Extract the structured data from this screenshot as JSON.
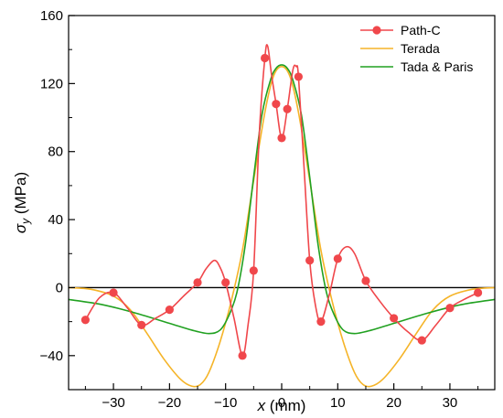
{
  "chart_data": {
    "type": "line",
    "xlabel_var": "x",
    "xlabel_unit": " (mm)",
    "ylabel_var": "σ",
    "ylabel_sub": "y",
    "ylabel_unit": " (MPa)",
    "xlim": [
      -38,
      38
    ],
    "ylim": [
      -60,
      160
    ],
    "xticks": [
      -30,
      -20,
      -10,
      0,
      10,
      20,
      30
    ],
    "yticks": [
      -40,
      0,
      40,
      80,
      120,
      160
    ],
    "grid": false,
    "legend_position": "top-right",
    "zero_line": true,
    "colors": {
      "Path-C": "#f0474b",
      "Terada": "#f5b428",
      "Tada & Paris": "#21a121"
    },
    "series": [
      {
        "name": "Path-C",
        "kind": "line+markers",
        "points": [
          [
            -35,
            -19
          ],
          [
            -30,
            -3
          ],
          [
            -25,
            -22
          ],
          [
            -20,
            -13
          ],
          [
            -15,
            3
          ],
          [
            -10,
            3
          ],
          [
            -7,
            -40
          ],
          [
            -5,
            10
          ],
          [
            -3,
            135
          ],
          [
            -1,
            108
          ],
          [
            0,
            88
          ],
          [
            1,
            105
          ],
          [
            3,
            124
          ],
          [
            5,
            16
          ],
          [
            7,
            -20
          ],
          [
            10,
            17
          ],
          [
            15,
            4
          ],
          [
            20,
            -18
          ],
          [
            25,
            -31
          ],
          [
            30,
            -12
          ],
          [
            35,
            -3
          ]
        ],
        "curve": [
          [
            -35,
            -19
          ],
          [
            -32.5,
            -6
          ],
          [
            -30,
            -3
          ],
          [
            -27.5,
            -12
          ],
          [
            -25,
            -22
          ],
          [
            -22.5,
            -18
          ],
          [
            -20,
            -13
          ],
          [
            -17.5,
            -5
          ],
          [
            -15,
            3
          ],
          [
            -13.5,
            11
          ],
          [
            -12,
            16
          ],
          [
            -11,
            12
          ],
          [
            -10,
            3
          ],
          [
            -8.5,
            -18
          ],
          [
            -7,
            -40
          ],
          [
            -6,
            -22
          ],
          [
            -5,
            10
          ],
          [
            -4,
            90
          ],
          [
            -3,
            135
          ],
          [
            -2.5,
            142
          ],
          [
            -1.8,
            125
          ],
          [
            -1,
            108
          ],
          [
            0,
            88
          ],
          [
            1,
            105
          ],
          [
            2,
            128
          ],
          [
            2.6,
            130
          ],
          [
            3,
            124
          ],
          [
            4,
            70
          ],
          [
            5,
            16
          ],
          [
            6,
            -10
          ],
          [
            7,
            -20
          ],
          [
            8.5,
            -4
          ],
          [
            10,
            17
          ],
          [
            11.5,
            24
          ],
          [
            13,
            20
          ],
          [
            15,
            4
          ],
          [
            17.5,
            -8
          ],
          [
            20,
            -18
          ],
          [
            22.5,
            -26
          ],
          [
            25,
            -31
          ],
          [
            27.5,
            -22
          ],
          [
            30,
            -12
          ],
          [
            32.5,
            -7
          ],
          [
            35,
            -3
          ]
        ]
      },
      {
        "name": "Terada",
        "kind": "line",
        "curve": [
          [
            -38,
            0
          ],
          [
            -34,
            -1
          ],
          [
            -30,
            -5
          ],
          [
            -27,
            -13
          ],
          [
            -24,
            -27
          ],
          [
            -21,
            -42
          ],
          [
            -18,
            -54
          ],
          [
            -16,
            -58
          ],
          [
            -14.5,
            -57
          ],
          [
            -13,
            -50
          ],
          [
            -11,
            -32
          ],
          [
            -9,
            -8
          ],
          [
            -7,
            22
          ],
          [
            -5,
            63
          ],
          [
            -3,
            103
          ],
          [
            -1.5,
            124
          ],
          [
            0,
            130
          ],
          [
            1.5,
            124
          ],
          [
            3,
            103
          ],
          [
            5,
            63
          ],
          [
            7,
            22
          ],
          [
            9,
            -8
          ],
          [
            11,
            -32
          ],
          [
            13,
            -50
          ],
          [
            14.5,
            -57
          ],
          [
            16,
            -58
          ],
          [
            18,
            -54
          ],
          [
            21,
            -42
          ],
          [
            24,
            -27
          ],
          [
            27,
            -13
          ],
          [
            30,
            -5
          ],
          [
            34,
            -1
          ],
          [
            38,
            0
          ]
        ]
      },
      {
        "name": "Tada & Paris",
        "kind": "line",
        "curve": [
          [
            -38,
            -7
          ],
          [
            -32,
            -10
          ],
          [
            -26,
            -15
          ],
          [
            -20,
            -21
          ],
          [
            -16,
            -25
          ],
          [
            -13,
            -27
          ],
          [
            -11,
            -25
          ],
          [
            -9.5,
            -17
          ],
          [
            -8,
            -3
          ],
          [
            -6.5,
            25
          ],
          [
            -5,
            65
          ],
          [
            -3.5,
            102
          ],
          [
            -2,
            122
          ],
          [
            -1,
            129
          ],
          [
            0,
            131
          ],
          [
            1,
            129
          ],
          [
            2,
            122
          ],
          [
            3.5,
            102
          ],
          [
            5,
            65
          ],
          [
            6.5,
            25
          ],
          [
            8,
            -3
          ],
          [
            9.5,
            -17
          ],
          [
            11,
            -25
          ],
          [
            13,
            -27
          ],
          [
            16,
            -25
          ],
          [
            20,
            -21
          ],
          [
            26,
            -15
          ],
          [
            32,
            -10
          ],
          [
            38,
            -7
          ]
        ]
      }
    ]
  }
}
